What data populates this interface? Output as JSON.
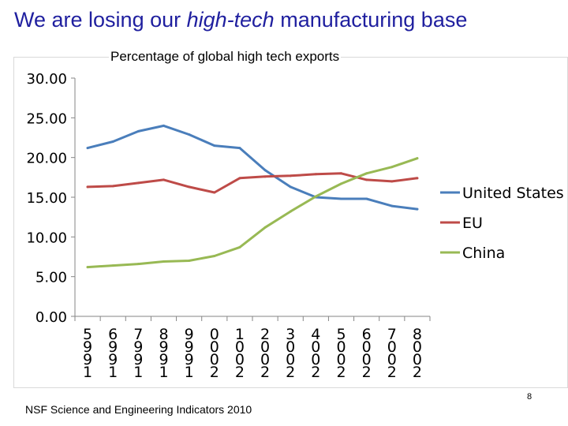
{
  "slide": {
    "title_pre": "We are losing our ",
    "title_em": "high-tech",
    "title_post": " manufacturing base",
    "source": "NSF Science and Engineering Indicators 2010",
    "page_number": "8"
  },
  "chart_data": {
    "type": "line",
    "title": "Percentage of global high tech exports",
    "xlabel": "",
    "ylabel": "",
    "ylim": [
      0,
      30
    ],
    "yticks": [
      "0.00",
      "5.00",
      "10.00",
      "15.00",
      "20.00",
      "25.00",
      "30.00"
    ],
    "x": [
      1995,
      1996,
      1997,
      1998,
      1999,
      2000,
      2001,
      2002,
      2003,
      2004,
      2005,
      2006,
      2007,
      2008
    ],
    "xtick_labels": [
      [
        "5",
        "9",
        "9",
        "1"
      ],
      [
        "6",
        "9",
        "9",
        "1"
      ],
      [
        "7",
        "9",
        "9",
        "1"
      ],
      [
        "8",
        "9",
        "9",
        "1"
      ],
      [
        "9",
        "9",
        "9",
        "1"
      ],
      [
        "0",
        "0",
        "0",
        "2"
      ],
      [
        "1",
        "0",
        "0",
        "2"
      ],
      [
        "2",
        "0",
        "0",
        "2"
      ],
      [
        "3",
        "0",
        "0",
        "2"
      ],
      [
        "4",
        "0",
        "0",
        "2"
      ],
      [
        "5",
        "0",
        "0",
        "2"
      ],
      [
        "6",
        "0",
        "0",
        "2"
      ],
      [
        "7",
        "0",
        "0",
        "2"
      ],
      [
        "8",
        "0",
        "0",
        "2"
      ]
    ],
    "grid": false,
    "legend_position": "right",
    "series": [
      {
        "name": "United States",
        "color": "#4a7ebb",
        "values": [
          21.2,
          22.0,
          23.3,
          24.0,
          22.9,
          21.5,
          21.2,
          18.4,
          16.3,
          15.0,
          14.8,
          14.8,
          13.9,
          13.5
        ]
      },
      {
        "name": "EU",
        "color": "#be4b48",
        "values": [
          16.3,
          16.4,
          16.8,
          17.2,
          16.3,
          15.6,
          17.4,
          17.6,
          17.7,
          17.9,
          18.0,
          17.2,
          17.0,
          17.4
        ]
      },
      {
        "name": "China",
        "color": "#98b954",
        "values": [
          6.2,
          6.4,
          6.6,
          6.9,
          7.0,
          7.6,
          8.7,
          11.2,
          13.2,
          15.1,
          16.7,
          18.0,
          18.8,
          19.9
        ]
      }
    ]
  }
}
